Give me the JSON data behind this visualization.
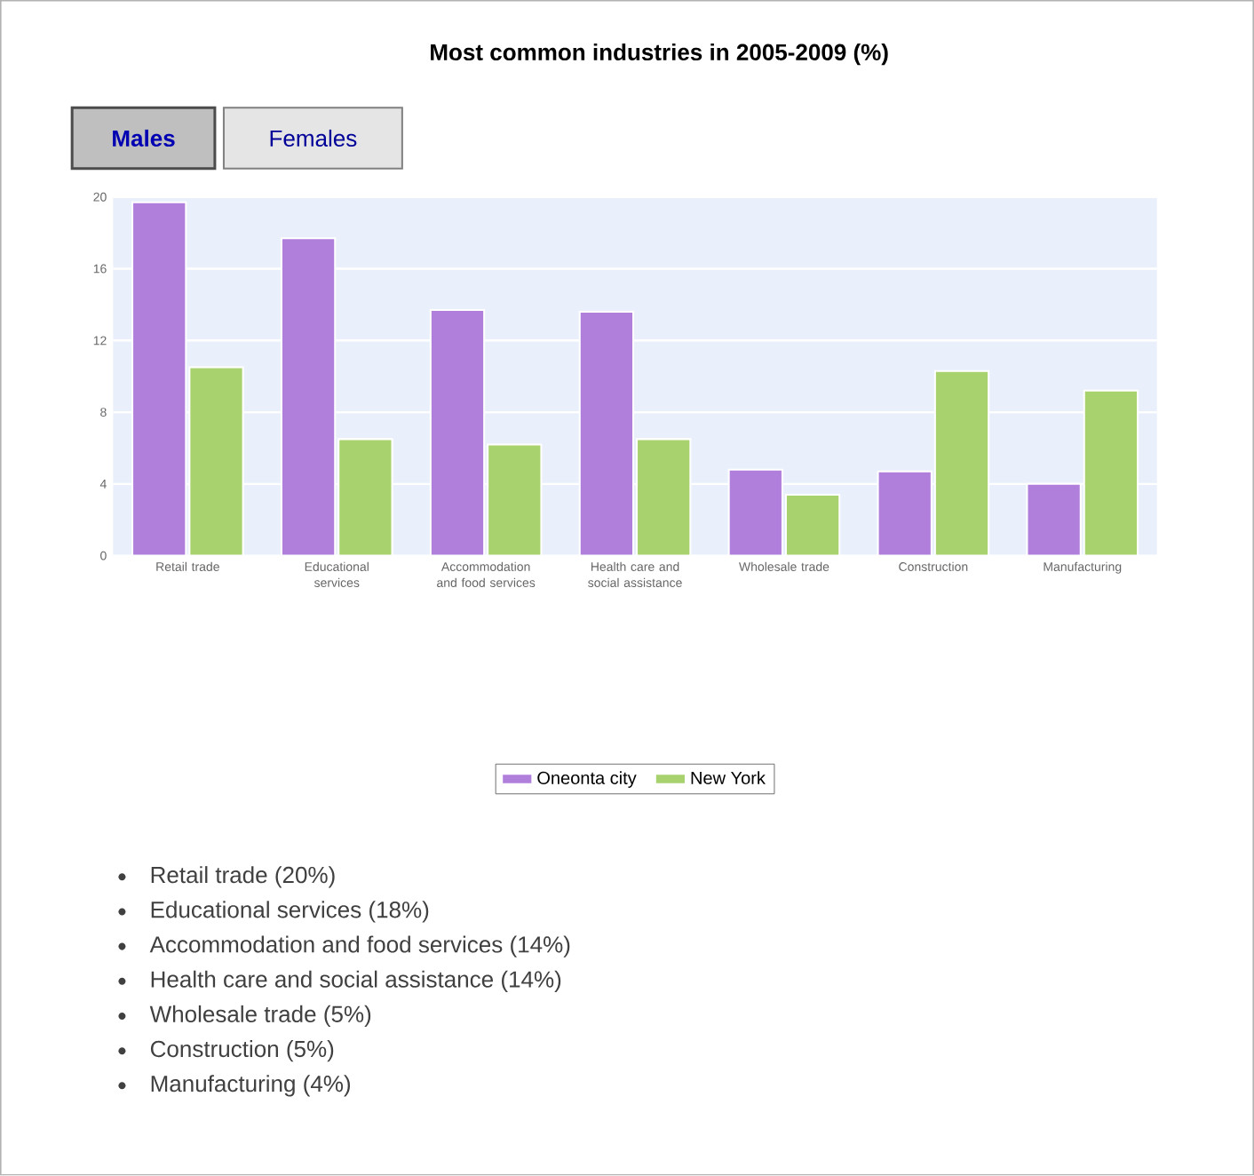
{
  "chart_data": {
    "type": "bar",
    "title": "Most common industries in 2005-2009 (%)",
    "categories": [
      "Retail trade",
      "Educational services",
      "Accommodation and food services",
      "Health care and social assistance",
      "Wholesale trade",
      "Construction",
      "Manufacturing"
    ],
    "series": [
      {
        "name": "Oneonta city",
        "color": "#b07fdc",
        "values": [
          19.7,
          17.7,
          13.7,
          13.6,
          4.8,
          4.7,
          4.0
        ]
      },
      {
        "name": "New York",
        "color": "#a8d26e",
        "values": [
          10.5,
          6.5,
          6.2,
          6.5,
          3.4,
          10.3,
          9.2
        ]
      }
    ],
    "ylim": [
      0,
      20
    ],
    "yticks": [
      0,
      4,
      8,
      12,
      16,
      20
    ],
    "grid": "y",
    "legend": "bottom",
    "annotations": [
      "Males",
      "Females",
      "Retail trade (20%)",
      "Educational services (18%)",
      "Accommodation and food services (14%)",
      "Health care and social assistance (14%)",
      "Wholesale trade (5%)",
      "Construction (5%)",
      "Manufacturing (4%)"
    ]
  }
}
